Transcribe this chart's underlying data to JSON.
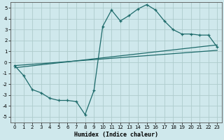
{
  "xlabel": "Humidex (Indice chaleur)",
  "bg_color": "#cfe8ec",
  "grid_color": "#aecccc",
  "line_color": "#1e6b6b",
  "xlim": [
    -0.5,
    23.5
  ],
  "ylim": [
    -5.5,
    5.5
  ],
  "xticks": [
    0,
    1,
    2,
    3,
    4,
    5,
    6,
    7,
    8,
    9,
    10,
    11,
    12,
    13,
    14,
    15,
    16,
    17,
    18,
    19,
    20,
    21,
    22,
    23
  ],
  "yticks": [
    -5,
    -4,
    -3,
    -2,
    -1,
    0,
    1,
    2,
    3,
    4,
    5
  ],
  "curve1_x": [
    0,
    1,
    2,
    3,
    4,
    5,
    6,
    7,
    8,
    9,
    10,
    11,
    12,
    13,
    14,
    15,
    16,
    17,
    18,
    19,
    20,
    21,
    22,
    23
  ],
  "curve1_y": [
    -0.3,
    -1.2,
    -2.5,
    -2.8,
    -3.3,
    -3.5,
    -3.5,
    -3.6,
    -4.8,
    -2.6,
    3.3,
    4.8,
    3.8,
    4.3,
    4.9,
    5.3,
    4.8,
    3.8,
    3.0,
    2.6,
    2.6,
    2.5,
    2.5,
    1.4
  ],
  "line1_x": [
    0,
    23
  ],
  "line1_y": [
    -0.3,
    1.1
  ],
  "line2_x": [
    0,
    23
  ],
  "line2_y": [
    -0.5,
    1.6
  ],
  "xlabel_fontsize": 6,
  "tick_fontsize": 5
}
